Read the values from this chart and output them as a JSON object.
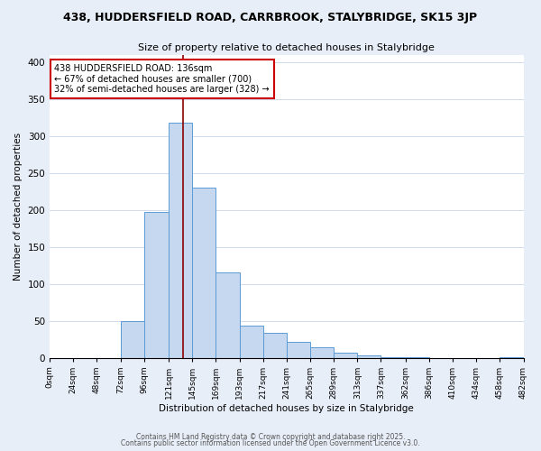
{
  "title": "438, HUDDERSFIELD ROAD, CARRBROOK, STALYBRIDGE, SK15 3JP",
  "subtitle": "Size of property relative to detached houses in Stalybridge",
  "xlabel": "Distribution of detached houses by size in Stalybridge",
  "ylabel": "Number of detached properties",
  "bar_color": "#c5d8f0",
  "bar_edge_color": "#5b9bd5",
  "bins": [
    0,
    24,
    48,
    72,
    96,
    121,
    145,
    169,
    193,
    217,
    241,
    265,
    289,
    313,
    337,
    362,
    386,
    410,
    434,
    458,
    482
  ],
  "values": [
    0,
    0,
    0,
    50,
    197,
    318,
    230,
    116,
    44,
    34,
    22,
    14,
    7,
    3,
    1,
    1,
    0,
    0,
    0,
    1
  ],
  "tick_labels": [
    "0sqm",
    "24sqm",
    "48sqm",
    "72sqm",
    "96sqm",
    "121sqm",
    "145sqm",
    "169sqm",
    "193sqm",
    "217sqm",
    "241sqm",
    "265sqm",
    "289sqm",
    "313sqm",
    "337sqm",
    "362sqm",
    "386sqm",
    "410sqm",
    "434sqm",
    "458sqm",
    "482sqm"
  ],
  "ylim": [
    0,
    410
  ],
  "yticks": [
    0,
    50,
    100,
    150,
    200,
    250,
    300,
    350,
    400
  ],
  "property_line_x": 136,
  "property_line_color": "#8b0000",
  "annotation_line1": "438 HUDDERSFIELD ROAD: 136sqm",
  "annotation_line2": "← 67% of detached houses are smaller (700)",
  "annotation_line3": "32% of semi-detached houses are larger (328) →",
  "footer_line1": "Contains HM Land Registry data © Crown copyright and database right 2025.",
  "footer_line2": "Contains public sector information licensed under the Open Government Licence v3.0.",
  "bg_color": "#e8eef8",
  "plot_bg_color": "#ffffff",
  "grid_color": "#c8d4e8"
}
